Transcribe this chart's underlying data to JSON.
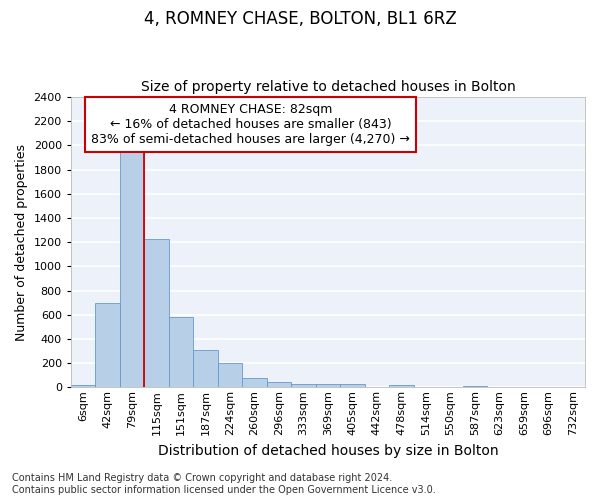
{
  "title": "4, ROMNEY CHASE, BOLTON, BL1 6RZ",
  "subtitle": "Size of property relative to detached houses in Bolton",
  "xlabel": "Distribution of detached houses by size in Bolton",
  "ylabel": "Number of detached properties",
  "categories": [
    "6sqm",
    "42sqm",
    "79sqm",
    "115sqm",
    "151sqm",
    "187sqm",
    "224sqm",
    "260sqm",
    "296sqm",
    "333sqm",
    "369sqm",
    "405sqm",
    "442sqm",
    "478sqm",
    "514sqm",
    "550sqm",
    "587sqm",
    "623sqm",
    "659sqm",
    "696sqm",
    "732sqm"
  ],
  "values": [
    15,
    700,
    1950,
    1230,
    580,
    305,
    200,
    80,
    45,
    30,
    30,
    30,
    0,
    15,
    0,
    0,
    10,
    0,
    0,
    0,
    0
  ],
  "bar_color": "#b8cfe8",
  "bar_edge_color": "#6699cc",
  "background_color": "#edf1f9",
  "grid_color": "#ffffff",
  "ylim": [
    0,
    2400
  ],
  "yticks": [
    0,
    200,
    400,
    600,
    800,
    1000,
    1200,
    1400,
    1600,
    1800,
    2000,
    2200,
    2400
  ],
  "property_line_color": "#cc0000",
  "property_line_bar_index": 2,
  "annotation_line1": "4 ROMNEY CHASE: 82sqm",
  "annotation_line2": "← 16% of detached houses are smaller (843)",
  "annotation_line3": "83% of semi-detached houses are larger (4,270) →",
  "annotation_box_edgecolor": "#cc0000",
  "footer_line1": "Contains HM Land Registry data © Crown copyright and database right 2024.",
  "footer_line2": "Contains public sector information licensed under the Open Government Licence v3.0.",
  "title_fontsize": 12,
  "subtitle_fontsize": 10,
  "annotation_fontsize": 9,
  "ylabel_fontsize": 9,
  "xlabel_fontsize": 10,
  "tick_fontsize": 8,
  "footer_fontsize": 7
}
